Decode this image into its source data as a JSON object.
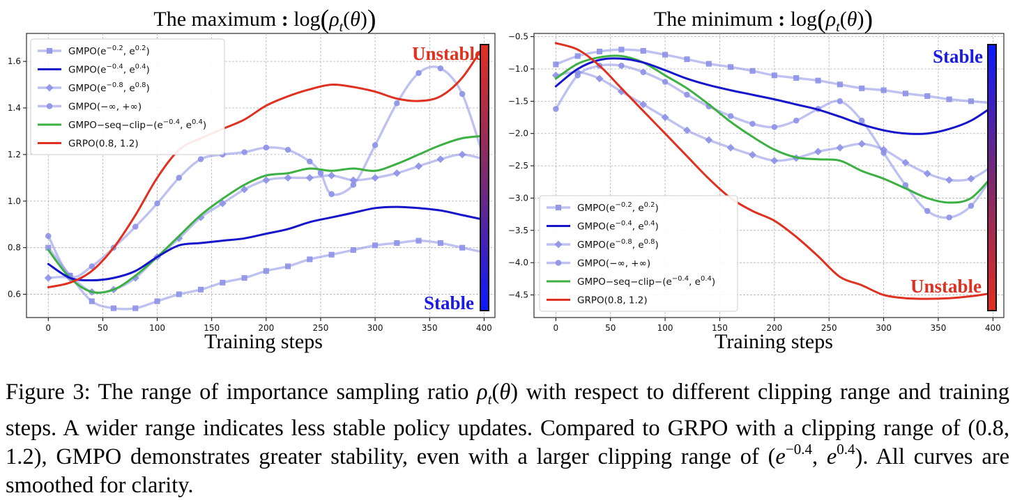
{
  "figure": {
    "caption_label": "Figure 3:",
    "caption_parts": [
      "The range of importance sampling ratio ",
      " with respect to different clipping range and training steps. A wider range indicates less stable policy updates. Compared to GRPO with a clipping range of (0.8, 1.2), GMPO demonstrates greater stability, even with a larger clipping range of ",
      ". All curves are smoothed for clarity."
    ]
  },
  "chart_data": [
    {
      "type": "line",
      "title": "The maximum : log(ρt(θ))",
      "xlabel": "Training steps",
      "ylabel": "",
      "xlim": [
        -20,
        410
      ],
      "ylim": [
        0.5,
        1.72
      ],
      "xticks": [
        0,
        50,
        100,
        150,
        200,
        250,
        300,
        350,
        400
      ],
      "yticks": [
        0.6,
        0.8,
        1.0,
        1.2,
        1.4,
        1.6
      ],
      "ytick_labels": [
        "0.6",
        "0.8",
        "1.0",
        "1.2",
        "1.4",
        "1.6"
      ],
      "grid": true,
      "legend_position": "top-left",
      "annotations": [
        {
          "text": "Unstable",
          "color": "#e03020",
          "position": "top-right"
        },
        {
          "text": "Stable",
          "color": "#1a1ae6",
          "position": "bottom-right"
        }
      ],
      "colorbar": {
        "top_color": "#e03020",
        "bottom_color": "#0a1aff"
      },
      "series": [
        {
          "name": "GMPO(e^{-0.2}, e^{0.2})",
          "color": "#8a8fe6",
          "marker": "square",
          "x": [
            0,
            20,
            40,
            60,
            80,
            100,
            120,
            140,
            160,
            180,
            200,
            220,
            240,
            260,
            280,
            300,
            320,
            340,
            360,
            380,
            400
          ],
          "y": [
            0.8,
            0.68,
            0.57,
            0.54,
            0.54,
            0.57,
            0.6,
            0.62,
            0.65,
            0.67,
            0.7,
            0.72,
            0.75,
            0.77,
            0.79,
            0.81,
            0.82,
            0.83,
            0.82,
            0.8,
            0.78
          ]
        },
        {
          "name": "GMPO(e^{-0.4}, e^{0.4})",
          "color": "#1414cc",
          "marker": "none",
          "x": [
            0,
            20,
            40,
            60,
            80,
            100,
            120,
            140,
            160,
            180,
            200,
            220,
            240,
            260,
            280,
            300,
            320,
            340,
            360,
            380,
            400
          ],
          "y": [
            0.73,
            0.67,
            0.66,
            0.67,
            0.7,
            0.76,
            0.81,
            0.82,
            0.83,
            0.84,
            0.86,
            0.88,
            0.91,
            0.93,
            0.95,
            0.97,
            0.975,
            0.97,
            0.96,
            0.94,
            0.92
          ]
        },
        {
          "name": "GMPO(e^{-0.8}, e^{0.8})",
          "color": "#8a8fe6",
          "marker": "diamond",
          "x": [
            0,
            20,
            40,
            60,
            80,
            100,
            120,
            140,
            160,
            180,
            200,
            220,
            240,
            260,
            280,
            300,
            320,
            340,
            360,
            380,
            400
          ],
          "y": [
            0.67,
            0.67,
            0.61,
            0.62,
            0.67,
            0.76,
            0.84,
            0.93,
            0.99,
            1.05,
            1.09,
            1.1,
            1.1,
            1.11,
            1.09,
            1.1,
            1.12,
            1.15,
            1.18,
            1.2,
            1.18
          ]
        },
        {
          "name": "GMPO(-∞, +∞)",
          "color": "#8a8fe6",
          "marker": "circle",
          "x": [
            0,
            20,
            40,
            60,
            80,
            100,
            120,
            140,
            160,
            180,
            200,
            220,
            240,
            250,
            260,
            280,
            300,
            320,
            340,
            360,
            380,
            400
          ],
          "y": [
            0.85,
            0.68,
            0.72,
            0.8,
            0.89,
            0.99,
            1.1,
            1.18,
            1.2,
            1.21,
            1.23,
            1.22,
            1.17,
            1.12,
            1.03,
            1.07,
            1.24,
            1.42,
            1.55,
            1.57,
            1.46,
            1.18
          ]
        },
        {
          "name": "GMPO-seq-clip-(e^{-0.4}, e^{0.4})",
          "color": "#3cb043",
          "marker": "none",
          "x": [
            0,
            20,
            40,
            60,
            80,
            100,
            120,
            140,
            160,
            180,
            200,
            220,
            240,
            260,
            280,
            300,
            320,
            340,
            360,
            380,
            400
          ],
          "y": [
            0.79,
            0.67,
            0.61,
            0.62,
            0.68,
            0.76,
            0.85,
            0.94,
            1.01,
            1.07,
            1.11,
            1.12,
            1.14,
            1.13,
            1.14,
            1.13,
            1.16,
            1.2,
            1.24,
            1.27,
            1.28
          ]
        },
        {
          "name": "GRPO(0.8, 1.2)",
          "color": "#e03020",
          "marker": "none",
          "x": [
            0,
            20,
            40,
            60,
            80,
            100,
            120,
            140,
            160,
            180,
            200,
            220,
            240,
            260,
            280,
            300,
            320,
            340,
            360,
            380,
            400
          ],
          "y": [
            0.63,
            0.65,
            0.7,
            0.8,
            0.94,
            1.1,
            1.22,
            1.27,
            1.31,
            1.35,
            1.41,
            1.45,
            1.48,
            1.5,
            1.49,
            1.47,
            1.44,
            1.43,
            1.45,
            1.53,
            1.67
          ]
        }
      ]
    },
    {
      "type": "line",
      "title": "The minimum : log(ρt(θ))",
      "xlabel": "Training steps",
      "ylabel": "",
      "xlim": [
        -20,
        410
      ],
      "ylim": [
        -4.85,
        -0.45
      ],
      "xticks": [
        0,
        50,
        100,
        150,
        200,
        250,
        300,
        350,
        400
      ],
      "yticks": [
        -0.5,
        -1.0,
        -1.5,
        -2.0,
        -2.5,
        -3.0,
        -3.5,
        -4.0,
        -4.5
      ],
      "ytick_labels": [
        "−0.5",
        "−1.0",
        "−1.5",
        "−2.0",
        "−2.5",
        "−3.0",
        "−3.5",
        "−4.0",
        "−4.5"
      ],
      "grid": true,
      "legend_position": "bottom-left",
      "annotations": [
        {
          "text": "Stable",
          "color": "#1a1ae6",
          "position": "top-right"
        },
        {
          "text": "Unstable",
          "color": "#e03020",
          "position": "bottom-right"
        }
      ],
      "colorbar": {
        "top_color": "#0a1aff",
        "bottom_color": "#e03020"
      },
      "series": [
        {
          "name": "GMPO(e^{-0.2}, e^{0.2})",
          "color": "#8a8fe6",
          "marker": "square",
          "x": [
            0,
            20,
            40,
            60,
            80,
            100,
            120,
            140,
            160,
            180,
            200,
            220,
            240,
            260,
            280,
            300,
            320,
            340,
            360,
            380,
            400
          ],
          "y": [
            -0.93,
            -0.8,
            -0.73,
            -0.7,
            -0.72,
            -0.78,
            -0.85,
            -0.92,
            -0.97,
            -1.03,
            -1.1,
            -1.14,
            -1.18,
            -1.24,
            -1.3,
            -1.33,
            -1.38,
            -1.42,
            -1.47,
            -1.5,
            -1.53
          ]
        },
        {
          "name": "GMPO(e^{-0.4}, e^{0.4})",
          "color": "#1414cc",
          "marker": "none",
          "x": [
            0,
            20,
            40,
            60,
            80,
            100,
            120,
            140,
            160,
            180,
            200,
            220,
            240,
            260,
            280,
            300,
            320,
            340,
            360,
            380,
            400
          ],
          "y": [
            -1.27,
            -1.0,
            -0.86,
            -0.84,
            -0.9,
            -1.02,
            -1.15,
            -1.25,
            -1.33,
            -1.4,
            -1.47,
            -1.55,
            -1.63,
            -1.74,
            -1.86,
            -1.95,
            -2.0,
            -2.0,
            -1.93,
            -1.8,
            -1.58
          ]
        },
        {
          "name": "GMPO(e^{-0.8}, e^{0.8})",
          "color": "#8a8fe6",
          "marker": "diamond",
          "x": [
            0,
            20,
            40,
            60,
            80,
            100,
            120,
            140,
            160,
            180,
            200,
            220,
            240,
            260,
            280,
            300,
            320,
            340,
            360,
            380,
            400
          ],
          "y": [
            -1.1,
            -1.05,
            -1.15,
            -1.35,
            -1.55,
            -1.75,
            -1.95,
            -2.1,
            -2.22,
            -2.33,
            -2.42,
            -2.38,
            -2.28,
            -2.22,
            -2.16,
            -2.25,
            -2.45,
            -2.62,
            -2.72,
            -2.7,
            -2.5
          ]
        },
        {
          "name": "GMPO(-∞, +∞)",
          "color": "#8a8fe6",
          "marker": "circle",
          "x": [
            0,
            20,
            40,
            60,
            80,
            100,
            120,
            140,
            160,
            180,
            200,
            220,
            240,
            260,
            280,
            300,
            320,
            340,
            360,
            380,
            400
          ],
          "y": [
            -1.62,
            -1.1,
            -0.95,
            -0.95,
            -1.05,
            -1.2,
            -1.4,
            -1.58,
            -1.73,
            -1.85,
            -1.9,
            -1.8,
            -1.62,
            -1.5,
            -1.8,
            -2.3,
            -2.8,
            -3.2,
            -3.3,
            -3.12,
            -2.65
          ]
        },
        {
          "name": "GMPO-seq-clip-(e^{-0.4}, e^{0.4})",
          "color": "#3cb043",
          "marker": "none",
          "x": [
            0,
            20,
            40,
            60,
            80,
            100,
            120,
            140,
            160,
            180,
            200,
            220,
            240,
            260,
            280,
            300,
            320,
            340,
            360,
            380,
            400
          ],
          "y": [
            -1.15,
            -0.92,
            -0.82,
            -0.8,
            -0.9,
            -1.1,
            -1.3,
            -1.55,
            -1.82,
            -2.05,
            -2.25,
            -2.37,
            -2.4,
            -2.42,
            -2.58,
            -2.7,
            -2.85,
            -3.0,
            -3.07,
            -3.0,
            -2.65
          ]
        },
        {
          "name": "GRPO(0.8, 1.2)",
          "color": "#e03020",
          "marker": "none",
          "x": [
            0,
            20,
            40,
            60,
            80,
            100,
            120,
            140,
            160,
            180,
            200,
            220,
            240,
            260,
            280,
            300,
            320,
            340,
            360,
            380,
            400
          ],
          "y": [
            -0.6,
            -0.7,
            -0.95,
            -1.3,
            -1.65,
            -2.0,
            -2.35,
            -2.7,
            -3.0,
            -3.2,
            -3.35,
            -3.6,
            -3.9,
            -4.22,
            -4.35,
            -4.5,
            -4.55,
            -4.56,
            -4.55,
            -4.52,
            -4.47
          ]
        }
      ]
    }
  ]
}
